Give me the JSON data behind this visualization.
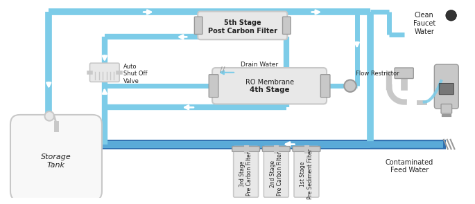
{
  "bg": "#ffffff",
  "lb": "#7dcce8",
  "lb2": "#a8dff0",
  "db": "#2b6cb0",
  "db2": "#1e4d8c",
  "gray1": "#e8e8e8",
  "gray2": "#c8c8c8",
  "gray3": "#999999",
  "gray4": "#555555",
  "txd": "#222222",
  "stage5": "5th Stage\nPost Carbon Filter",
  "stage4_b": "4th Stage",
  "stage4_s": "RO Membrane",
  "stage3": "3rd Stage\nPre Carbon Filter",
  "stage2": "2nd Stage\nPre Carbon Filter",
  "stage1": "1st Stage\nPre Sediment Filter",
  "auto_lbl": "Auto\nShut Off\nValve",
  "tank_lbl": "Storage\nTank",
  "clean_lbl": "Clean\nFaucet\nWater",
  "contam_lbl": "Contaminated\nFeed Water",
  "drain_lbl": "Drain Water",
  "flow_lbl": "Flow Restrictor",
  "figw": 6.85,
  "figh": 2.95,
  "dpi": 100
}
